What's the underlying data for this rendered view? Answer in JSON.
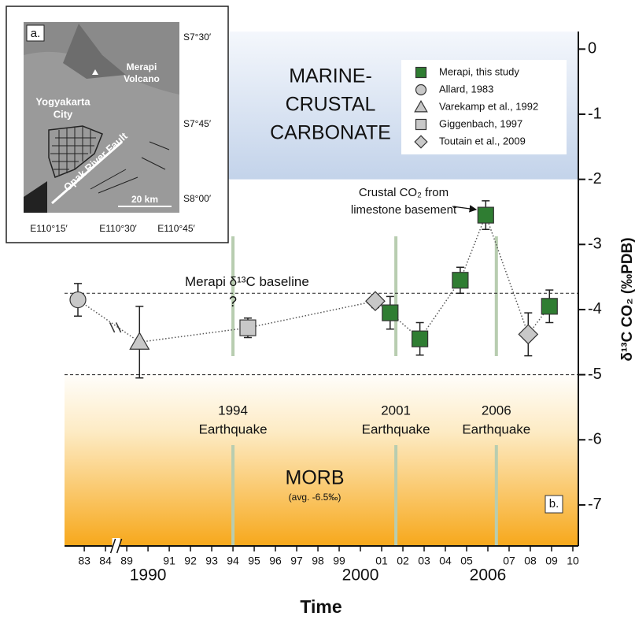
{
  "chart_data": {
    "type": "scatter",
    "panel_label": "b.",
    "xlabel": "Time",
    "ylabel": "δ¹³C CO₂ (‰PDB)",
    "xlim": [
      1982.07,
      2010.26
    ],
    "axis_break": [
      1984.5,
      1988.5
    ],
    "xticks": [
      {
        "value": 1983,
        "label": "83"
      },
      {
        "value": 1984,
        "label": "84"
      },
      {
        "value": 1989,
        "label": "89"
      },
      {
        "value": 1990,
        "label": "1990"
      },
      {
        "value": 1991,
        "label": "91"
      },
      {
        "value": 1992,
        "label": "92"
      },
      {
        "value": 1993,
        "label": "93"
      },
      {
        "value": 1994,
        "label": "94"
      },
      {
        "value": 1995,
        "label": "95"
      },
      {
        "value": 1996,
        "label": "96"
      },
      {
        "value": 1997,
        "label": "97"
      },
      {
        "value": 1998,
        "label": "98"
      },
      {
        "value": 1999,
        "label": "99"
      },
      {
        "value": 2000,
        "label": "2000"
      },
      {
        "value": 2001,
        "label": "01"
      },
      {
        "value": 2002,
        "label": "02"
      },
      {
        "value": 2003,
        "label": "03"
      },
      {
        "value": 2004,
        "label": "04"
      },
      {
        "value": 2005,
        "label": "05"
      },
      {
        "value": 2006,
        "label": "2006"
      },
      {
        "value": 2007,
        "label": "07"
      },
      {
        "value": 2008,
        "label": "08"
      },
      {
        "value": 2009,
        "label": "09"
      },
      {
        "value": 2010,
        "label": "10"
      }
    ],
    "ylim": [
      -7.63,
      0.27
    ],
    "yticks": [
      0,
      -1,
      -2,
      -3,
      -4,
      -5,
      -6,
      -7
    ],
    "legend": "top-right",
    "series": [
      {
        "name": "Merapi, this study",
        "marker": "square",
        "color": "#2f7d32",
        "x": [
          2001.4,
          2002.8,
          2004.7,
          2005.9,
          2008.9
        ],
        "values": [
          -4.05,
          -4.45,
          -3.55,
          -2.55,
          -3.95
        ],
        "errors": [
          0.25,
          0.25,
          0.2,
          0.22,
          0.25
        ]
      },
      {
        "name": "Allard, 1983",
        "marker": "circle",
        "color": "#c8c8c8",
        "x": [
          1982.7
        ],
        "values": [
          -3.85
        ],
        "errors": [
          0.25
        ]
      },
      {
        "name": "Varekamp et al., 1992",
        "marker": "triangle",
        "color": "#c8c8c8",
        "x": [
          1989.6
        ],
        "values": [
          -4.5
        ],
        "errors": [
          0.55
        ]
      },
      {
        "name": "Giggenbach, 1997",
        "marker": "square",
        "color": "#c8c8c8",
        "x": [
          1994.7
        ],
        "values": [
          -4.28
        ],
        "errors": [
          0.15
        ]
      },
      {
        "name": "Toutain et al., 2009",
        "marker": "diamond",
        "color": "#c8c8c8",
        "x": [
          2000.7,
          2007.9
        ],
        "values": [
          -3.87,
          -4.38
        ],
        "errors": [
          0.1,
          0.33
        ]
      }
    ],
    "reference_lines": [
      {
        "value": -3.75,
        "label": "Merapi δ¹³C baseline"
      },
      {
        "value": -5
      }
    ],
    "events": [
      {
        "x": 1994,
        "year": "1994",
        "label": "Earthquake",
        "note": "?"
      },
      {
        "x": 2001.67,
        "year": "2001",
        "label": "Earthquake"
      },
      {
        "x": 2006.4,
        "year": "2006",
        "label": "Earthquake"
      }
    ],
    "regions": {
      "upper": {
        "to": -2,
        "lines": [
          "MARINE-",
          "CRUSTAL",
          "CARBONATE"
        ]
      },
      "lower": {
        "label": "MORB",
        "note": "(avg. -6.5‰)"
      }
    },
    "annotation": [
      "Crustal CO₂ from",
      "limestone basement"
    ]
  },
  "inset": {
    "label": "a.",
    "volcano": [
      "Merapi",
      "Volcano"
    ],
    "city": [
      "Yogyakarta",
      "City"
    ],
    "fault": "Opak River Fault",
    "scale": "20 km",
    "lat": [
      "S7°30′",
      "S7°45′",
      "S8°00′"
    ],
    "lon": [
      "E110°15′",
      "E110°30′",
      "E110°45′"
    ]
  }
}
